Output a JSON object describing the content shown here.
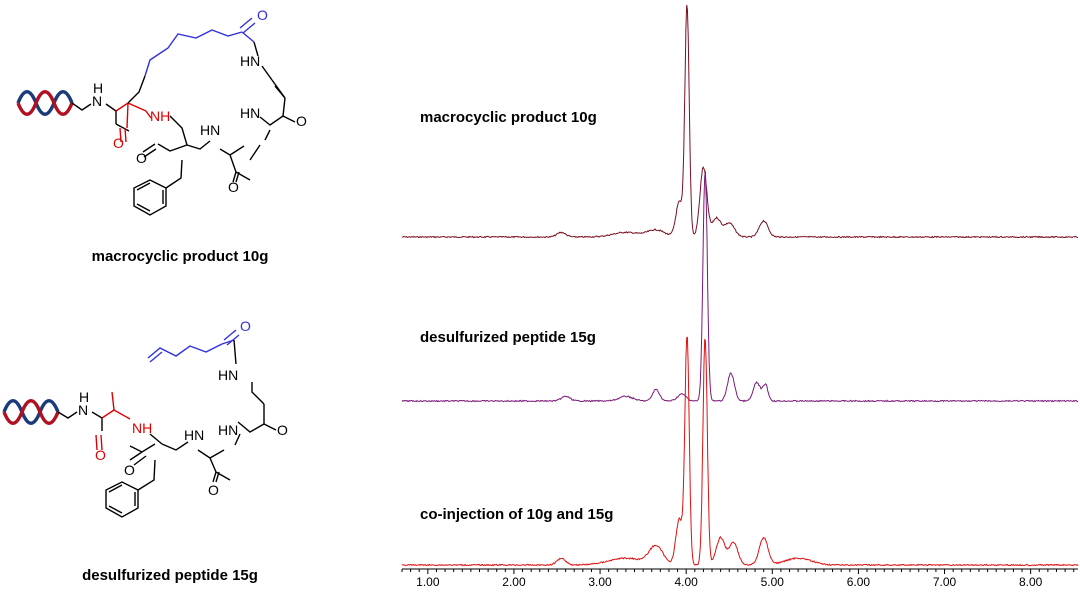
{
  "figure": {
    "molecule_1": {
      "name": "macrocyclic product 10g",
      "atom_labels": {
        "nh_linker": "N",
        "h_linker": "H",
        "nh_red": "NH",
        "o_red": "O",
        "o_blue": "O",
        "hn_1": "HN",
        "hn_2": "HN",
        "hn_3": "HN",
        "o_1": "O",
        "o_2": "O",
        "o_3": "O"
      }
    },
    "molecule_2": {
      "name": "desulfurized peptide 15g",
      "atom_labels": {
        "nh_linker": "N",
        "h_linker": "H",
        "nh_red": "NH",
        "o_red": "O",
        "o_blue": "O",
        "hn_1": "HN",
        "hn_2": "HN",
        "hn_3": "HN",
        "o_1": "O",
        "o_2": "O",
        "o_3": "O"
      }
    }
  },
  "chart_data": {
    "type": "line",
    "title": "",
    "xlabel": "",
    "ylabel": "",
    "xlim": [
      0.7,
      8.55
    ],
    "x_ticks": [
      "1.00",
      "2.00",
      "3.00",
      "4.00",
      "5.00",
      "6.00",
      "7.00",
      "8.00"
    ],
    "x_tick_values": [
      1,
      2,
      3,
      4,
      5,
      6,
      7,
      8
    ],
    "grid": false,
    "legend": "none",
    "series": [
      {
        "name": "macrocyclic product 10g",
        "color": "#7a1020",
        "peaks": [
          {
            "x": 2.55,
            "h": 0.02,
            "w": 0.05
          },
          {
            "x": 3.3,
            "h": 0.02,
            "w": 0.15
          },
          {
            "x": 3.65,
            "h": 0.03,
            "w": 0.1
          },
          {
            "x": 3.92,
            "h": 0.15,
            "w": 0.04
          },
          {
            "x": 4.01,
            "h": 1.0,
            "w": 0.025
          },
          {
            "x": 4.2,
            "h": 0.3,
            "w": 0.04
          },
          {
            "x": 4.35,
            "h": 0.08,
            "w": 0.05
          },
          {
            "x": 4.5,
            "h": 0.06,
            "w": 0.06
          },
          {
            "x": 4.9,
            "h": 0.07,
            "w": 0.05
          }
        ]
      },
      {
        "name": "desulfurized peptide 15g",
        "color": "#7a1a7a",
        "peaks": [
          {
            "x": 2.6,
            "h": 0.02,
            "w": 0.05
          },
          {
            "x": 3.3,
            "h": 0.02,
            "w": 0.08
          },
          {
            "x": 3.65,
            "h": 0.05,
            "w": 0.04
          },
          {
            "x": 3.95,
            "h": 0.03,
            "w": 0.05
          },
          {
            "x": 4.22,
            "h": 1.0,
            "w": 0.025
          },
          {
            "x": 4.52,
            "h": 0.12,
            "w": 0.04
          },
          {
            "x": 4.82,
            "h": 0.08,
            "w": 0.04
          },
          {
            "x": 4.92,
            "h": 0.07,
            "w": 0.03
          }
        ]
      },
      {
        "name": "co-injection of 10g and 15g",
        "color": "#e01010",
        "peaks": [
          {
            "x": 2.55,
            "h": 0.03,
            "w": 0.05
          },
          {
            "x": 3.3,
            "h": 0.03,
            "w": 0.2
          },
          {
            "x": 3.65,
            "h": 0.08,
            "w": 0.08
          },
          {
            "x": 3.92,
            "h": 0.2,
            "w": 0.04
          },
          {
            "x": 4.01,
            "h": 1.0,
            "w": 0.025
          },
          {
            "x": 4.22,
            "h": 1.0,
            "w": 0.025
          },
          {
            "x": 4.4,
            "h": 0.12,
            "w": 0.05
          },
          {
            "x": 4.55,
            "h": 0.1,
            "w": 0.05
          },
          {
            "x": 4.9,
            "h": 0.12,
            "w": 0.05
          },
          {
            "x": 5.3,
            "h": 0.03,
            "w": 0.15
          }
        ]
      }
    ]
  }
}
